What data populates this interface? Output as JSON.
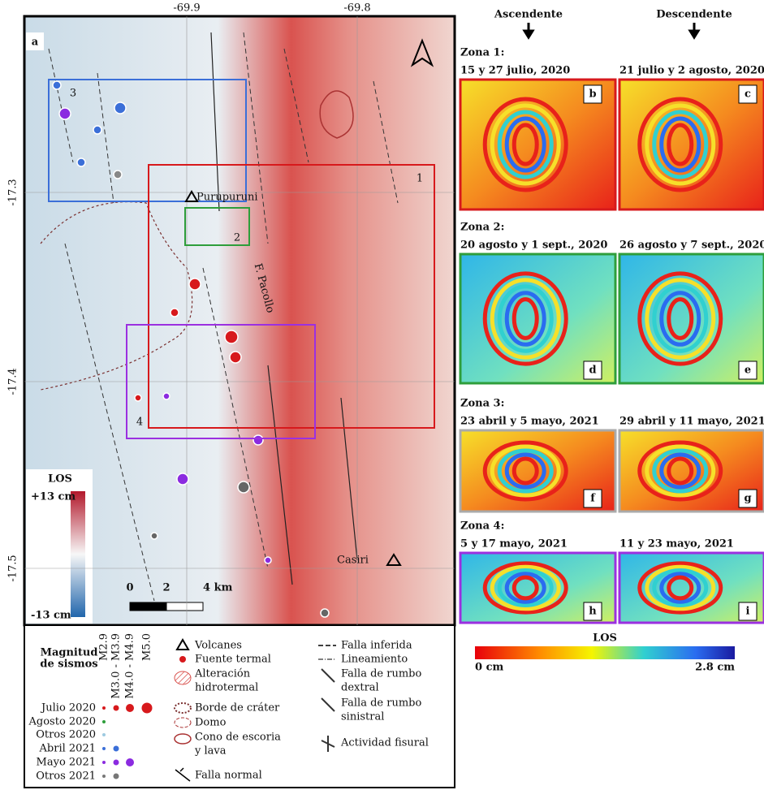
{
  "map": {
    "panel": "a",
    "lon_ticks": [
      "-69.9",
      "-69.8"
    ],
    "lat_ticks": [
      "-17.3",
      "-17.4",
      "-17.5"
    ],
    "zones": [
      "3",
      "1",
      "2",
      "4"
    ],
    "places": [
      "Purupuruni",
      "Casiri",
      "F. Pacollo"
    ],
    "colorbar": {
      "title": "LOS",
      "max": "+13 cm",
      "min": "-13 cm"
    },
    "scale": [
      "0",
      "2",
      "4 km"
    ]
  },
  "legend_sismos": {
    "title": [
      "Magnitud",
      "de sismos"
    ],
    "columns": [
      "M2.9",
      "M3.0 - M3.9",
      "M4.0 - M4.9",
      "M5.0"
    ],
    "rows": [
      "Julio 2020",
      "Agosto 2020",
      "Otros 2020",
      "Abril 2021",
      "Mayo 2021",
      "Otros 2021"
    ]
  },
  "legend_symbols": [
    [
      "Volcanes"
    ],
    [
      "Fuente termal"
    ],
    [
      "Alteración",
      "hidrotermal"
    ],
    [
      "Borde de cráter"
    ],
    [
      "Domo"
    ],
    [
      "Cono de escoria",
      "y lava"
    ],
    [
      "Falla normal"
    ],
    [
      "Falla inferida"
    ],
    [
      "Lineamiento"
    ],
    [
      "Falla de rumbo",
      "dextral"
    ],
    [
      "Falla de rumbo",
      "sinistral"
    ],
    [
      "Actividad fisural"
    ]
  ],
  "insar": {
    "columns": [
      "Ascendente",
      "Descendente"
    ],
    "zones": [
      {
        "title": "Zona 1:",
        "dates": [
          "15 y 27 julio, 2020",
          "21 julio y 2 agosto, 2020"
        ],
        "panels": [
          "b",
          "c"
        ]
      },
      {
        "title": "Zona 2:",
        "dates": [
          "20 agosto y 1 sept., 2020",
          "26 agosto y 7 sept., 2020"
        ],
        "panels": [
          "d",
          "e"
        ]
      },
      {
        "title": "Zona 3:",
        "dates": [
          "23 abril y 5 mayo, 2021",
          "29 abril y 11 mayo, 2021"
        ],
        "panels": [
          "f",
          "g"
        ]
      },
      {
        "title": "Zona 4:",
        "dates": [
          "5 y 17 mayo, 2021",
          "11 y 23 mayo, 2021"
        ],
        "panels": [
          "h",
          "i"
        ]
      }
    ],
    "colorbar": {
      "title": "LOS",
      "min": "0 cm",
      "max": "2.8 cm"
    }
  }
}
